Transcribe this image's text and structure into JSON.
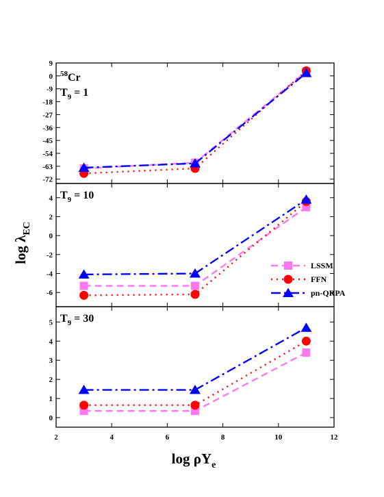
{
  "chart_data": {
    "type": "line",
    "xlabel": "log ρY",
    "xlabel_sub": "e",
    "ylabel": "log λ",
    "ylabel_sub": "EC",
    "xlim": [
      2,
      12
    ],
    "xticks": [
      2,
      4,
      6,
      8,
      10,
      12
    ],
    "x": [
      3,
      7,
      11
    ],
    "legend": {
      "placement": "right of middle panel",
      "entries": [
        "LSSM",
        "FFN",
        "pn-QRPA"
      ]
    },
    "series_styles": [
      {
        "name": "LSSM",
        "color": "#ff77ee",
        "marker": "square",
        "dash": "dashed"
      },
      {
        "name": "FFN",
        "color": "#ff0000",
        "marker": "circle",
        "dash": "dotted"
      },
      {
        "name": "pn-QRPA",
        "color": "#0000ff",
        "marker": "triangle",
        "dash": "dash-dot"
      }
    ],
    "panels": [
      {
        "nucleus_sup": "58",
        "nucleus": "Cr",
        "temp_base": "T",
        "temp_sub": "9",
        "temp_value": " = 1",
        "ylim": [
          -75,
          9
        ],
        "yticks": [
          9,
          0,
          -9,
          -18,
          -27,
          -36,
          -45,
          -54,
          -63,
          -72
        ],
        "series": [
          {
            "name": "LSSM",
            "values": [
              -64.5,
              -60.5,
              3.0
            ]
          },
          {
            "name": "FFN",
            "values": [
              -68.0,
              -64.5,
              3.5
            ]
          },
          {
            "name": "pn-QRPA",
            "values": [
              -64.0,
              -61.0,
              2.0
            ]
          }
        ]
      },
      {
        "temp_base": "T",
        "temp_sub": "9",
        "temp_value": " = 10",
        "ylim": [
          -7.5,
          5.5
        ],
        "yticks": [
          4,
          2,
          0,
          -2,
          -4,
          -6
        ],
        "series": [
          {
            "name": "LSSM",
            "values": [
              -5.3,
              -5.3,
              3.0
            ]
          },
          {
            "name": "FFN",
            "values": [
              -6.3,
              -6.2,
              3.6
            ]
          },
          {
            "name": "pn-QRPA",
            "values": [
              -4.1,
              -4.0,
              3.8
            ]
          }
        ]
      },
      {
        "temp_base": "T",
        "temp_sub": "9",
        "temp_value": " = 30",
        "ylim": [
          -0.5,
          5.8
        ],
        "yticks": [
          5,
          4,
          3,
          2,
          1,
          0
        ],
        "series": [
          {
            "name": "LSSM",
            "values": [
              0.35,
              0.35,
              3.4
            ]
          },
          {
            "name": "FFN",
            "values": [
              0.65,
              0.65,
              4.0
            ]
          },
          {
            "name": "pn-QRPA",
            "values": [
              1.45,
              1.45,
              4.7
            ]
          }
        ]
      }
    ]
  }
}
